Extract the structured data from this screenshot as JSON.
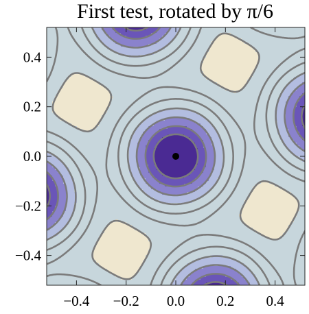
{
  "chart_data": {
    "type": "contour",
    "title": "First test, rotated by π/6",
    "xlabel": "",
    "ylabel": "",
    "xlim": [
      -0.52,
      0.52
    ],
    "ylim": [
      -0.52,
      0.52
    ],
    "x_ticks": [
      -0.4,
      -0.2,
      0.0,
      0.2,
      0.4
    ],
    "y_ticks": [
      -0.4,
      -0.2,
      0.0,
      0.2,
      0.4
    ],
    "x_tick_labels": [
      "−0.4",
      "−0.2",
      "0.0",
      "0.2",
      "0.4"
    ],
    "y_tick_labels": [
      "−0.4",
      "−0.2",
      "0.0",
      "0.2",
      "0.4"
    ],
    "rotation": "π/6",
    "center_marker": {
      "x": 0.0,
      "y": 0.0
    },
    "colors": {
      "lowest": "#4a2a93",
      "low": "#6a55b8",
      "mid": "#8a82cd",
      "midhigh": "#b3bde0",
      "high": "#c7d6dc",
      "highest": "#efe7cf",
      "contour_line": "#7b7b7b"
    },
    "grid": false
  }
}
